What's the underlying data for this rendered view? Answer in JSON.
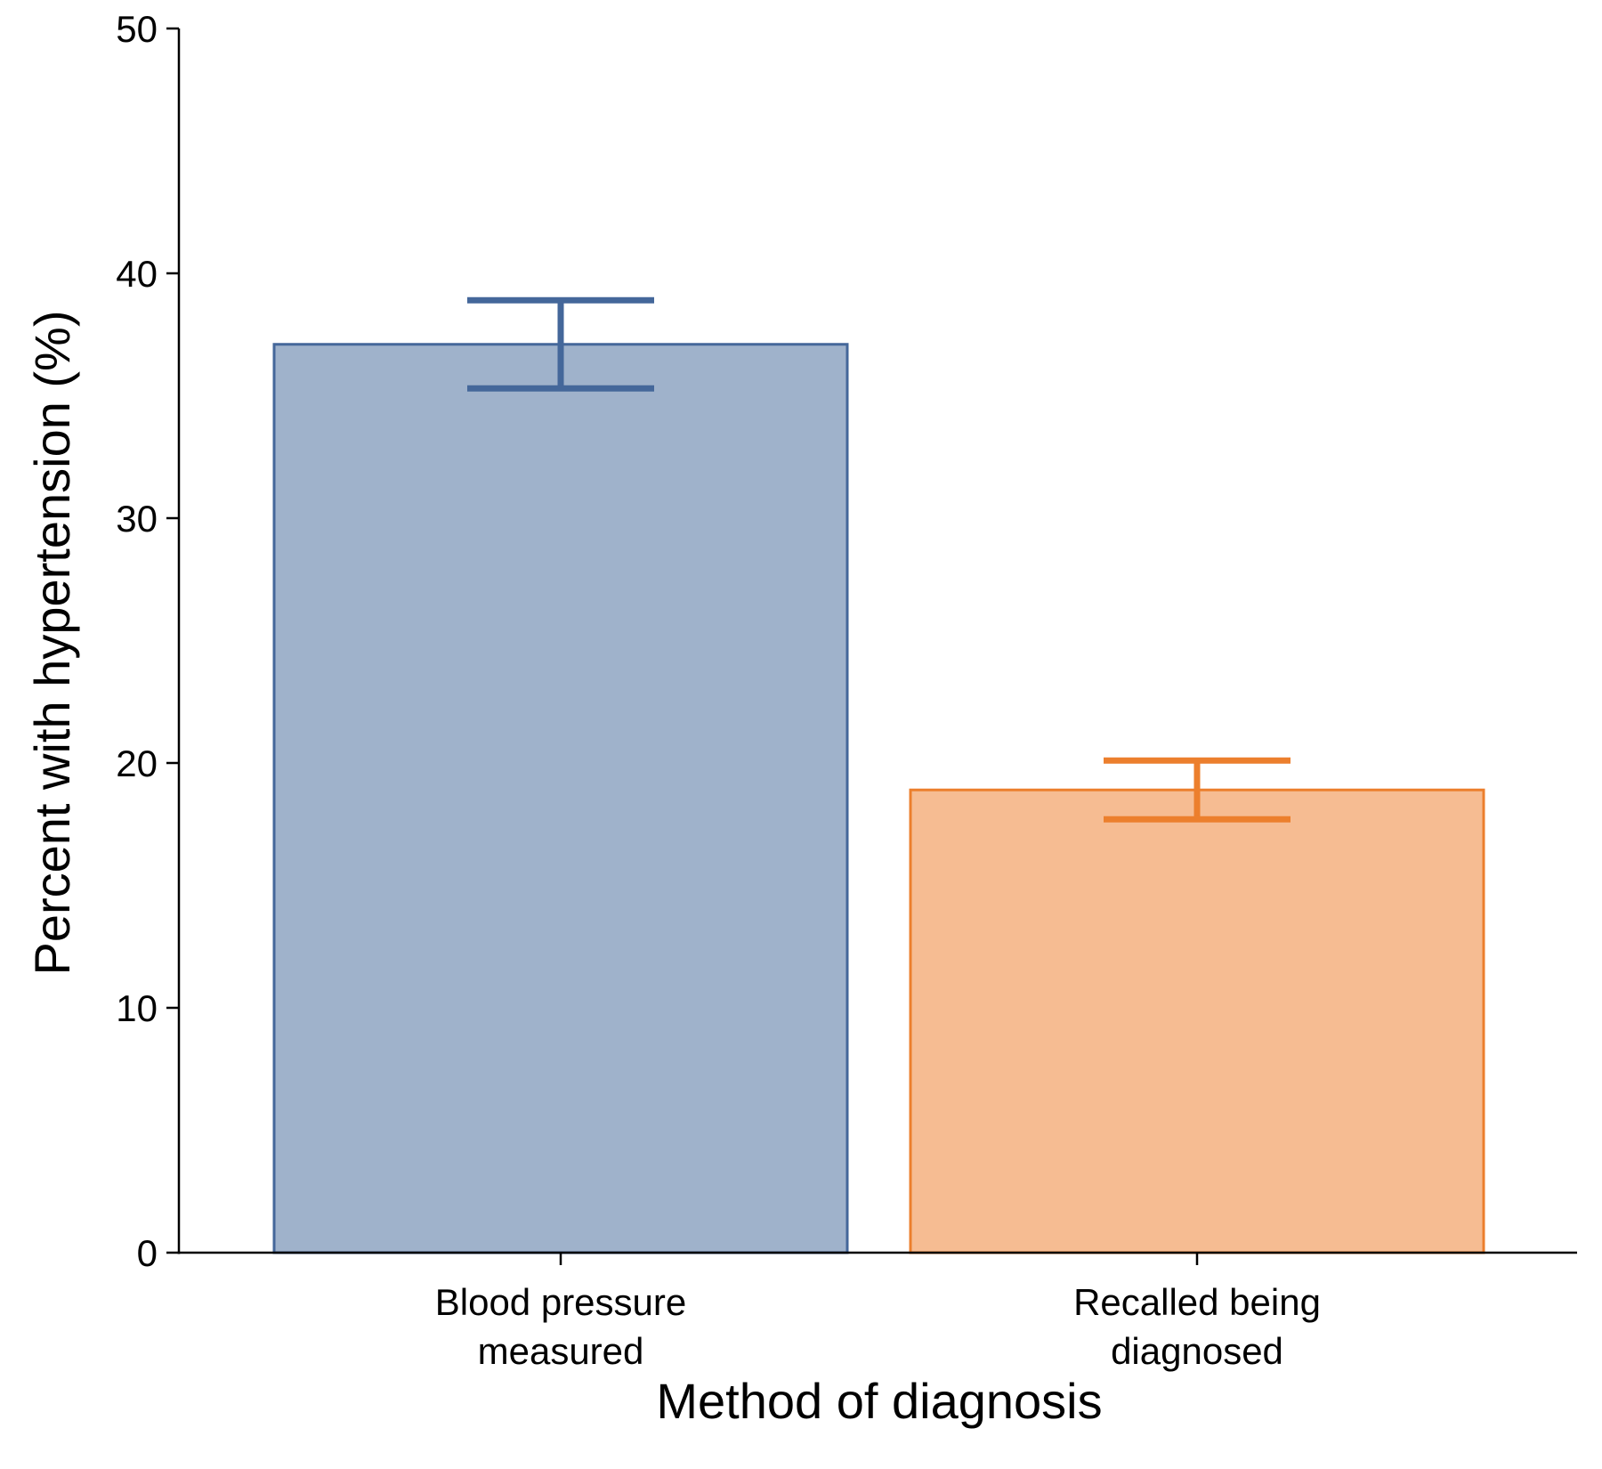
{
  "chart_data": {
    "type": "bar",
    "categories": [
      [
        "Blood pressure",
        "measured"
      ],
      [
        "Recalled being",
        "diagnosed"
      ]
    ],
    "values": [
      37.1,
      18.9
    ],
    "error_low": [
      35.3,
      17.7
    ],
    "error_high": [
      38.9,
      20.1
    ],
    "colors": {
      "fill": [
        "#9fb2cb",
        "#f6bc92"
      ],
      "stroke": [
        "#44679a",
        "#ec7f2d"
      ]
    },
    "title": "",
    "xlabel": "Method of diagnosis",
    "ylabel": "Percent with hypertension (%)",
    "ylim": [
      0,
      50
    ],
    "yticks": [
      "0",
      "10",
      "20",
      "30",
      "40",
      "50"
    ],
    "grid": false,
    "legend": "none"
  }
}
